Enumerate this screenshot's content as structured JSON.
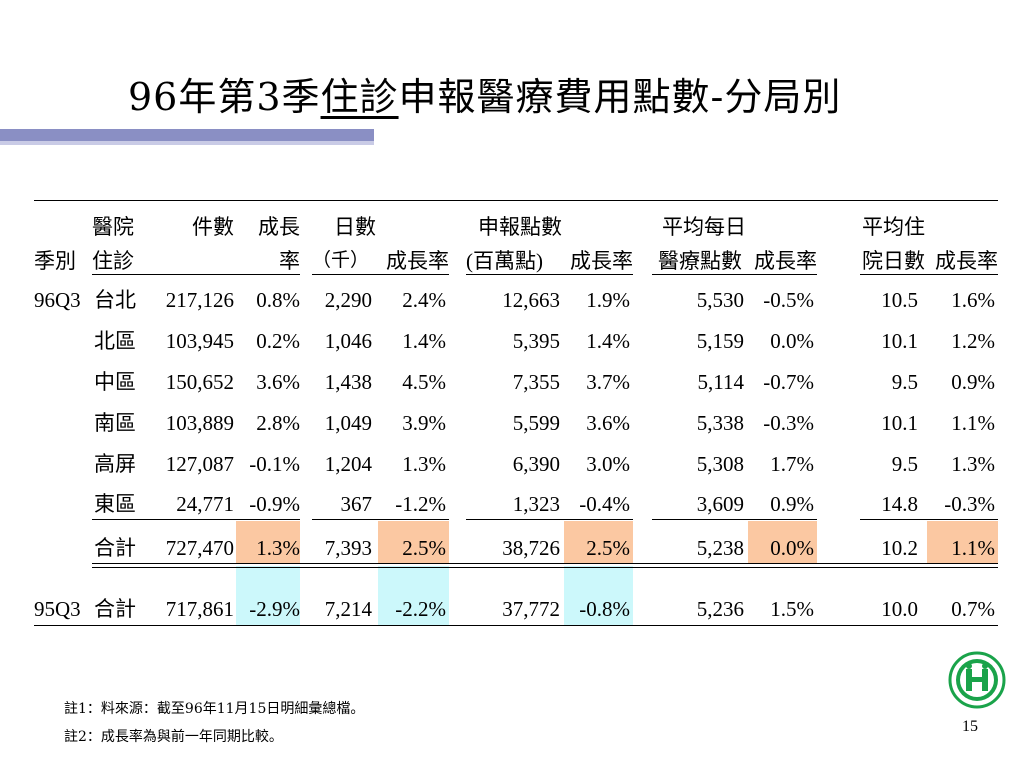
{
  "title": {
    "prefix": "96年第3季",
    "underlined": "住診",
    "suffix": "申報醫療費用點數-分局別"
  },
  "header": {
    "season": "季別",
    "hospital_line1": "醫院",
    "hospital_line2": "住診",
    "cases": "件數",
    "cases_growth_line1": "成長",
    "cases_growth_line2": "率",
    "days_line1": "日數",
    "days_line2": "（千）",
    "days_growth": "成長率",
    "points_line1": "申報點數",
    "points_line2": "(百萬點)",
    "points_growth": "成長率",
    "avg_daily_line1": "平均每日",
    "avg_daily_line2": "醫療點數",
    "avg_daily_growth": "成長率",
    "avg_stay_line1": "平均住",
    "avg_stay_line2": "院日數",
    "avg_stay_growth": "成長率"
  },
  "season_96": "96Q3",
  "season_95": "95Q3",
  "rows": [
    {
      "branch": "台北",
      "cases": "217,126",
      "cases_g": "0.8%",
      "days": "2,290",
      "days_g": "2.4%",
      "points": "12,663",
      "points_g": "1.9%",
      "avg": "5,530",
      "avg_g": "-0.5%",
      "stay": "10.5",
      "stay_g": "1.6%"
    },
    {
      "branch": "北區",
      "cases": "103,945",
      "cases_g": "0.2%",
      "days": "1,046",
      "days_g": "1.4%",
      "points": "5,395",
      "points_g": "1.4%",
      "avg": "5,159",
      "avg_g": "0.0%",
      "stay": "10.1",
      "stay_g": "1.2%"
    },
    {
      "branch": "中區",
      "cases": "150,652",
      "cases_g": "3.6%",
      "days": "1,438",
      "days_g": "4.5%",
      "points": "7,355",
      "points_g": "3.7%",
      "avg": "5,114",
      "avg_g": "-0.7%",
      "stay": "9.5",
      "stay_g": "0.9%"
    },
    {
      "branch": "南區",
      "cases": "103,889",
      "cases_g": "2.8%",
      "days": "1,049",
      "days_g": "3.9%",
      "points": "5,599",
      "points_g": "3.6%",
      "avg": "5,338",
      "avg_g": "-0.3%",
      "stay": "10.1",
      "stay_g": "1.1%"
    },
    {
      "branch": "高屏",
      "cases": "127,087",
      "cases_g": "-0.1%",
      "days": "1,204",
      "days_g": "1.3%",
      "points": "6,390",
      "points_g": "3.0%",
      "avg": "5,308",
      "avg_g": "1.7%",
      "stay": "9.5",
      "stay_g": "1.3%"
    },
    {
      "branch": "東區",
      "cases": "24,771",
      "cases_g": "-0.9%",
      "days": "367",
      "days_g": "-1.2%",
      "points": "1,323",
      "points_g": "-0.4%",
      "avg": "3,609",
      "avg_g": "0.9%",
      "stay": "14.8",
      "stay_g": "-0.3%"
    },
    {
      "branch": "合計",
      "cases": "727,470",
      "cases_g": "1.3%",
      "days": "7,393",
      "days_g": "2.5%",
      "points": "38,726",
      "points_g": "2.5%",
      "avg": "5,238",
      "avg_g": "0.0%",
      "stay": "10.2",
      "stay_g": "1.1%"
    },
    {
      "branch": "合計",
      "cases": "717,861",
      "cases_g": "-2.9%",
      "days": "7,214",
      "days_g": "-2.2%",
      "points": "37,772",
      "points_g": "-0.8%",
      "avg": "5,236",
      "avg_g": "1.5%",
      "stay": "10.0",
      "stay_g": "0.7%"
    }
  ],
  "notes": {
    "note1": "註1：料來源：截至96年11月15日明細彙總檔。",
    "note2": "註2：成長率為與前一年同期比較。"
  },
  "page_number": "15",
  "colors": {
    "highlight_orange": "#fbc8a2",
    "highlight_cyan": "#ccf8fb",
    "accent_bar": "#8a8fc4"
  }
}
